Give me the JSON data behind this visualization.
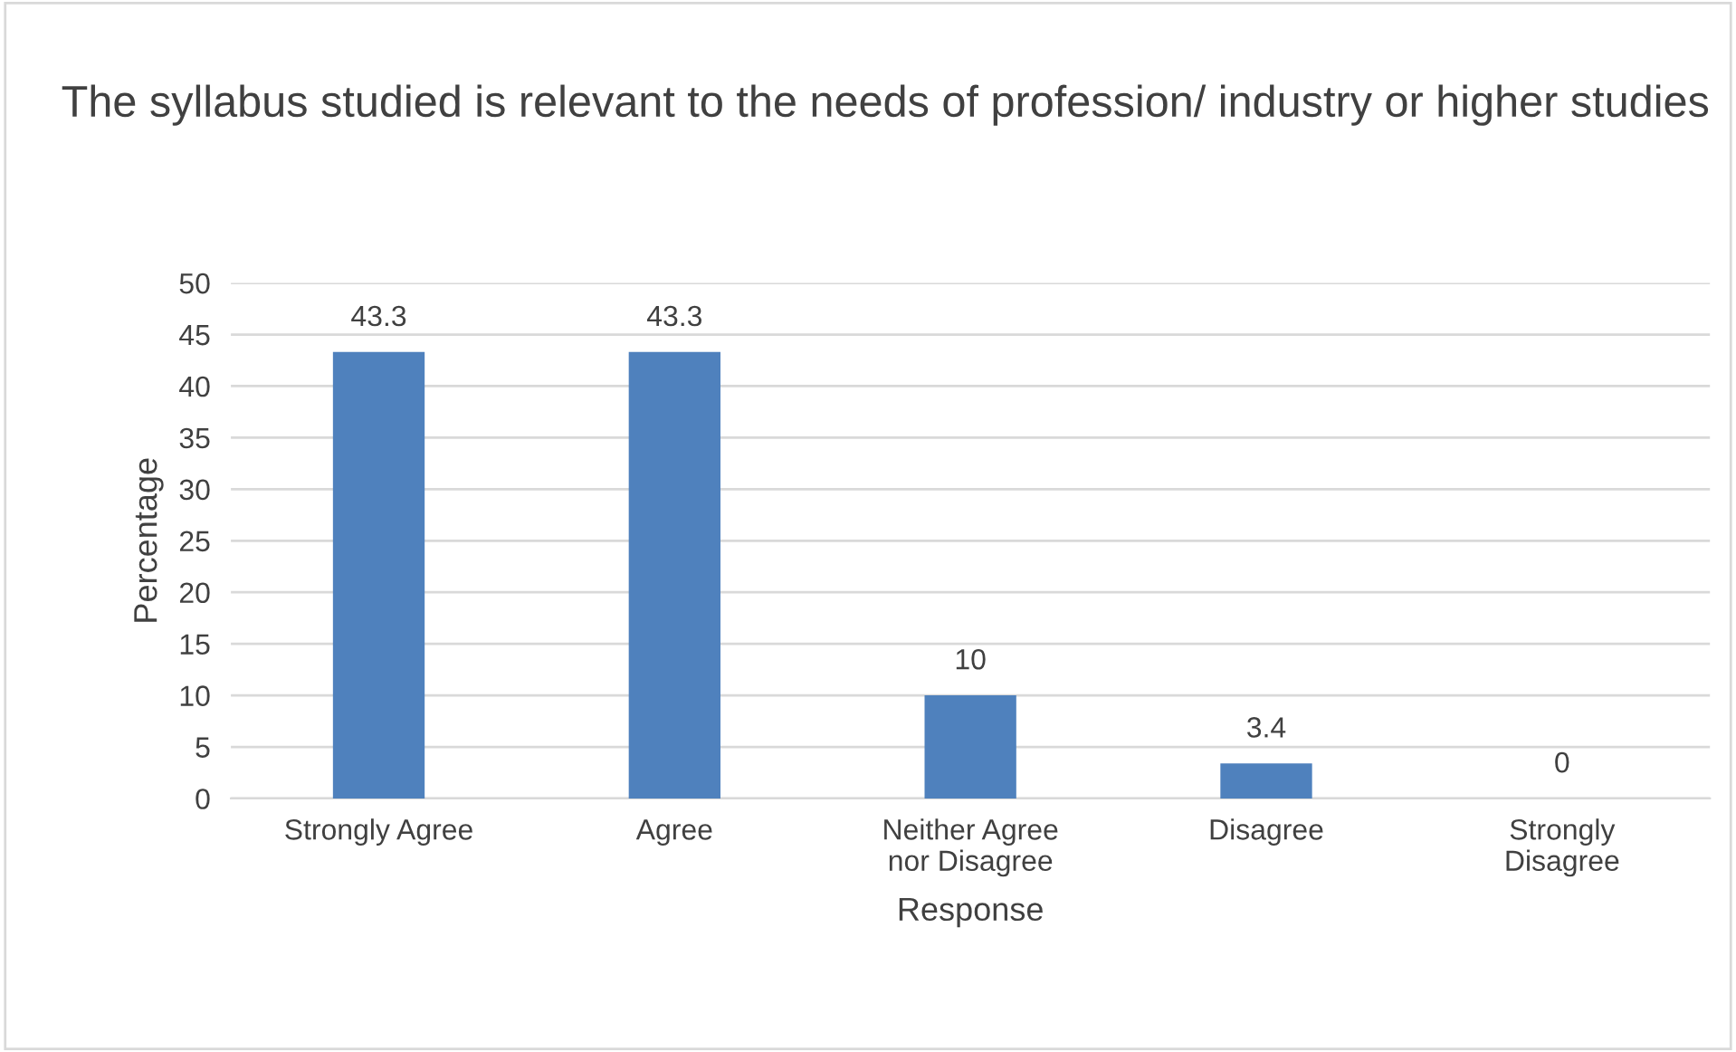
{
  "chart_data": {
    "type": "bar",
    "title": "The syllabus studied is relevant to the needs of profession/ industry or higher studies",
    "xlabel": "Response",
    "ylabel": "Percentage",
    "categories": [
      "Strongly Agree",
      "Agree",
      "Neither Agree\nnor Disagree",
      "Disagree",
      "Strongly\nDisagree"
    ],
    "values": [
      43.3,
      43.3,
      10,
      3.4,
      0
    ],
    "color": "#4f81bd",
    "ylim": [
      0,
      50
    ],
    "yticks": [
      0,
      5,
      10,
      15,
      20,
      25,
      30,
      35,
      40,
      45,
      50
    ],
    "grid": "y",
    "data_labels": true
  }
}
